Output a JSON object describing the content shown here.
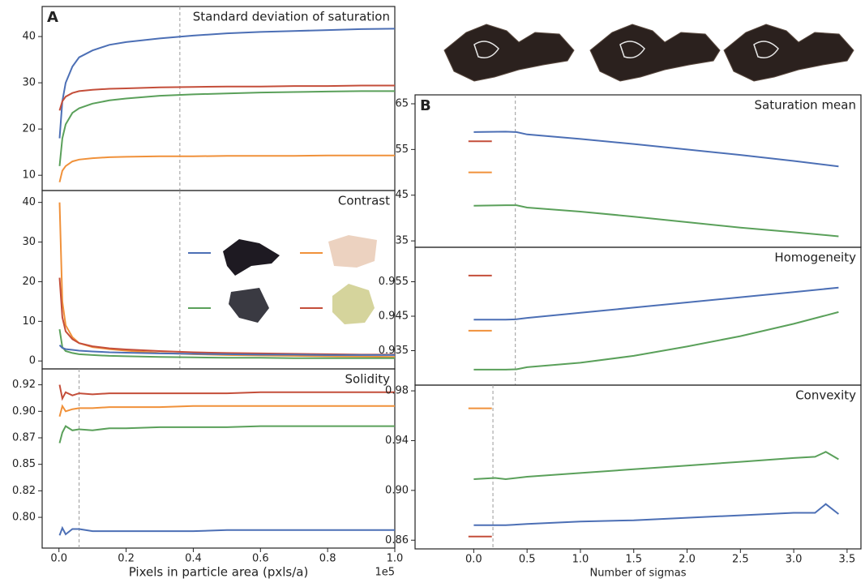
{
  "chart_data": [
    {
      "type": "line",
      "panel_label": "A",
      "title": "Standard deviation of saturation",
      "x": [
        0.002,
        0.01,
        0.02,
        0.04,
        0.06,
        0.1,
        0.15,
        0.2,
        0.3,
        0.4,
        0.5,
        0.6,
        0.7,
        0.8,
        0.9,
        1.0
      ],
      "xlim": [
        -0.05,
        1.0
      ],
      "ylim": [
        6.7,
        46.5
      ],
      "yticks": [
        10,
        20,
        30,
        40
      ],
      "vline": 0.36,
      "series": [
        {
          "color": "#4c6fb5",
          "values": [
            18,
            26,
            30,
            33.5,
            35.5,
            37,
            38.2,
            38.8,
            39.6,
            40.2,
            40.7,
            41,
            41.2,
            41.4,
            41.6,
            41.7
          ]
        },
        {
          "color": "#c44e3a",
          "values": [
            24,
            26,
            27,
            27.8,
            28.2,
            28.5,
            28.7,
            28.8,
            29,
            29.1,
            29.2,
            29.2,
            29.3,
            29.3,
            29.4,
            29.4
          ]
        },
        {
          "color": "#5aa05a",
          "values": [
            12,
            18,
            21,
            23.5,
            24.5,
            25.5,
            26.2,
            26.6,
            27.2,
            27.5,
            27.7,
            27.9,
            28,
            28.1,
            28.2,
            28.2
          ]
        },
        {
          "color": "#f0913a",
          "values": [
            8.5,
            11,
            12,
            13,
            13.4,
            13.7,
            13.9,
            14,
            14.1,
            14.1,
            14.2,
            14.2,
            14.2,
            14.3,
            14.3,
            14.3
          ]
        }
      ]
    },
    {
      "type": "line",
      "title": "Contrast",
      "x": [
        0.002,
        0.01,
        0.02,
        0.04,
        0.06,
        0.1,
        0.15,
        0.2,
        0.3,
        0.4,
        0.5,
        0.6,
        0.7,
        0.8,
        0.9,
        1.0
      ],
      "xlim": [
        -0.05,
        1.0
      ],
      "ylim": [
        -2,
        43
      ],
      "yticks": [
        0,
        10,
        20,
        30,
        40
      ],
      "vline": 0.36,
      "series": [
        {
          "color": "#f0913a",
          "values": [
            40,
            15,
            9,
            6,
            4.5,
            3.5,
            3,
            2.6,
            2,
            1.7,
            1.5,
            1.4,
            1.3,
            1.2,
            1.1,
            1.0
          ]
        },
        {
          "color": "#c44e3a",
          "values": [
            21,
            11,
            7.5,
            5.5,
            4.5,
            3.7,
            3.2,
            2.9,
            2.5,
            2.2,
            2,
            1.9,
            1.8,
            1.7,
            1.6,
            1.6
          ]
        },
        {
          "color": "#5aa05a",
          "values": [
            8,
            3.5,
            2.5,
            2,
            1.7,
            1.5,
            1.3,
            1.2,
            1,
            0.9,
            0.8,
            0.8,
            0.7,
            0.7,
            0.7,
            0.7
          ]
        },
        {
          "color": "#4c6fb5",
          "values": [
            4,
            3.3,
            3,
            2.8,
            2.6,
            2.4,
            2.2,
            2.1,
            1.9,
            1.8,
            1.7,
            1.6,
            1.6,
            1.5,
            1.5,
            1.5
          ]
        }
      ]
    },
    {
      "type": "line",
      "title": "Solidity",
      "xlabel": "Pixels in particle area (pxls/a)",
      "x_offset_label": "1e5",
      "x": [
        0.002,
        0.01,
        0.02,
        0.04,
        0.06,
        0.1,
        0.15,
        0.2,
        0.3,
        0.4,
        0.5,
        0.6,
        0.7,
        0.8,
        0.9,
        1.0
      ],
      "xlim": [
        -0.05,
        1.0
      ],
      "ylim": [
        0.771,
        0.94
      ],
      "xticks": [
        {
          "value": 0,
          "label": "0.0"
        },
        0.2,
        0.4,
        0.6,
        0.8,
        {
          "value": 1,
          "label": "1.0"
        }
      ],
      "yticks": [
        {
          "value": 0.8,
          "label": "0.80"
        },
        {
          "value": 0.825,
          "label": "0.82"
        },
        0.85,
        {
          "value": 0.875,
          "label": "0.87"
        },
        {
          "value": 0.9,
          "label": "0.90"
        },
        {
          "value": 0.925,
          "label": "0.92"
        }
      ],
      "vline": 0.06,
      "series": [
        {
          "color": "#c44e3a",
          "values": [
            0.925,
            0.912,
            0.918,
            0.915,
            0.917,
            0.916,
            0.917,
            0.917,
            0.917,
            0.917,
            0.917,
            0.918,
            0.918,
            0.918,
            0.918,
            0.918
          ]
        },
        {
          "color": "#f0913a",
          "values": [
            0.895,
            0.905,
            0.9,
            0.902,
            0.903,
            0.903,
            0.904,
            0.904,
            0.904,
            0.905,
            0.905,
            0.905,
            0.905,
            0.905,
            0.905,
            0.905
          ]
        },
        {
          "color": "#5aa05a",
          "values": [
            0.87,
            0.88,
            0.886,
            0.882,
            0.883,
            0.882,
            0.884,
            0.884,
            0.885,
            0.885,
            0.885,
            0.886,
            0.886,
            0.886,
            0.886,
            0.886
          ]
        },
        {
          "color": "#4c6fb5",
          "values": [
            0.783,
            0.79,
            0.784,
            0.789,
            0.789,
            0.787,
            0.787,
            0.787,
            0.787,
            0.787,
            0.788,
            0.788,
            0.788,
            0.788,
            0.788,
            0.788
          ]
        }
      ]
    },
    {
      "type": "line",
      "panel_label": "B",
      "title": "Saturation mean",
      "x": [
        0,
        0.3,
        0.4,
        0.5,
        1,
        1.5,
        2,
        2.5,
        3,
        3.42
      ],
      "xlim": [
        -0.55,
        3.63
      ],
      "ylim": [
        33.6,
        66.95
      ],
      "yticks": [
        35,
        45,
        55,
        65
      ],
      "vline": 0.39,
      "series": [
        {
          "color": "#4c6fb5",
          "values": [
            58.8,
            58.9,
            58.8,
            58.3,
            57.3,
            56.2,
            55,
            53.8,
            52.5,
            51.3
          ]
        },
        {
          "color": "#5aa05a",
          "values": [
            42.7,
            42.8,
            42.8,
            42.3,
            41.4,
            40.3,
            39.1,
            37.9,
            36.9,
            36.0
          ]
        },
        {
          "color": "#c44e3a",
          "x": [
            -0.05,
            0.17
          ],
          "values": [
            56.8,
            56.8
          ]
        },
        {
          "color": "#f0913a",
          "x": [
            -0.05,
            0.17
          ],
          "values": [
            50,
            50
          ]
        }
      ]
    },
    {
      "type": "line",
      "title": "Homogeneity",
      "x": [
        0,
        0.3,
        0.4,
        0.5,
        1,
        1.5,
        2,
        2.5,
        3,
        3.42
      ],
      "xlim": [
        -0.55,
        3.63
      ],
      "ylim": [
        0.925,
        0.965
      ],
      "yticks": [
        0.935,
        0.945,
        0.955
      ],
      "vline": 0.39,
      "series": [
        {
          "color": "#4c6fb5",
          "values": [
            0.944,
            0.944,
            0.9441,
            0.9445,
            0.946,
            0.9475,
            0.949,
            0.9505,
            0.952,
            0.9533
          ]
        },
        {
          "color": "#5aa05a",
          "values": [
            0.9295,
            0.9295,
            0.9296,
            0.9302,
            0.9315,
            0.9335,
            0.9362,
            0.9392,
            0.9428,
            0.9462
          ]
        },
        {
          "color": "#c44e3a",
          "x": [
            -0.05,
            0.17
          ],
          "values": [
            0.9568,
            0.9568
          ]
        },
        {
          "color": "#f0913a",
          "x": [
            -0.05,
            0.17
          ],
          "values": [
            0.9408,
            0.9408
          ]
        }
      ]
    },
    {
      "type": "line",
      "title": "Convexity",
      "xlabel": "Number of sigmas",
      "x": [
        0,
        0.2,
        0.3,
        0.5,
        1,
        1.5,
        2,
        2.5,
        3,
        3.2,
        3.3,
        3.42
      ],
      "xlim": [
        -0.55,
        3.63
      ],
      "ylim": [
        0.853,
        0.9846
      ],
      "xticks": [
        {
          "value": 0,
          "label": "0.0"
        },
        0.5,
        {
          "value": 1,
          "label": "1.0"
        },
        1.5,
        {
          "value": 2,
          "label": "2.0"
        },
        2.5,
        {
          "value": 3,
          "label": "3.0"
        },
        3.5
      ],
      "yticks": [
        0.86,
        {
          "value": 0.9,
          "label": "0.90"
        },
        0.94,
        0.98
      ],
      "vline": 0.18,
      "series": [
        {
          "color": "#5aa05a",
          "values": [
            0.909,
            0.91,
            0.909,
            0.911,
            0.914,
            0.917,
            0.92,
            0.923,
            0.926,
            0.927,
            0.931,
            0.925
          ]
        },
        {
          "color": "#4c6fb5",
          "values": [
            0.872,
            0.872,
            0.872,
            0.873,
            0.875,
            0.876,
            0.878,
            0.88,
            0.882,
            0.882,
            0.889,
            0.881
          ]
        },
        {
          "color": "#f0913a",
          "x": [
            -0.05,
            0.17
          ],
          "values": [
            0.966,
            0.966
          ]
        },
        {
          "color": "#c44e3a",
          "x": [
            -0.05,
            0.17
          ],
          "values": [
            0.863,
            0.863
          ]
        }
      ]
    }
  ]
}
